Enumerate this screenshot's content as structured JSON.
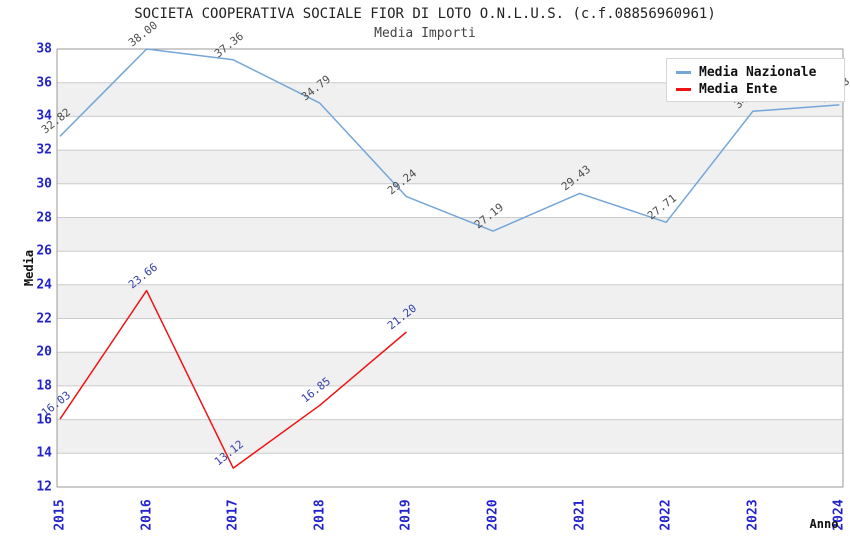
{
  "chart_data": {
    "type": "line",
    "title": "SOCIETA COOPERATIVA SOCIALE FIOR DI LOTO O.N.L.U.S. (c.f.08856960961)",
    "subtitle": "Media Importi",
    "xlabel": "Anno",
    "ylabel": "Media",
    "ylim": [
      12,
      38
    ],
    "ytick_step": 2,
    "grid": "horizontal gridlines with alternating gray/white bands",
    "legend_position": "top-right",
    "categories": [
      "2015",
      "2016",
      "2017",
      "2018",
      "2019",
      "2020",
      "2021",
      "2022",
      "2023",
      "2024"
    ],
    "series": [
      {
        "name": "Media Nazionale",
        "color": "#74a6da",
        "label_color": "#4d4d4d",
        "values": [
          32.82,
          38.0,
          37.36,
          34.79,
          29.24,
          27.19,
          29.43,
          27.71,
          34.3,
          34.68
        ],
        "note_2023": "label hidden behind legend box"
      },
      {
        "name": "Media Ente",
        "color": "#ee1414",
        "label_color": "#3340a8",
        "values": [
          16.03,
          23.66,
          13.12,
          16.85,
          21.2,
          null,
          null,
          null,
          null,
          null
        ]
      }
    ],
    "colors": {
      "axis_tick_labels": "#2323cd",
      "band_gray": "#f0f0f0",
      "gridline": "#cccccc",
      "plot_border": "#999999",
      "title": "#222222",
      "subtitle": "#444444"
    }
  }
}
